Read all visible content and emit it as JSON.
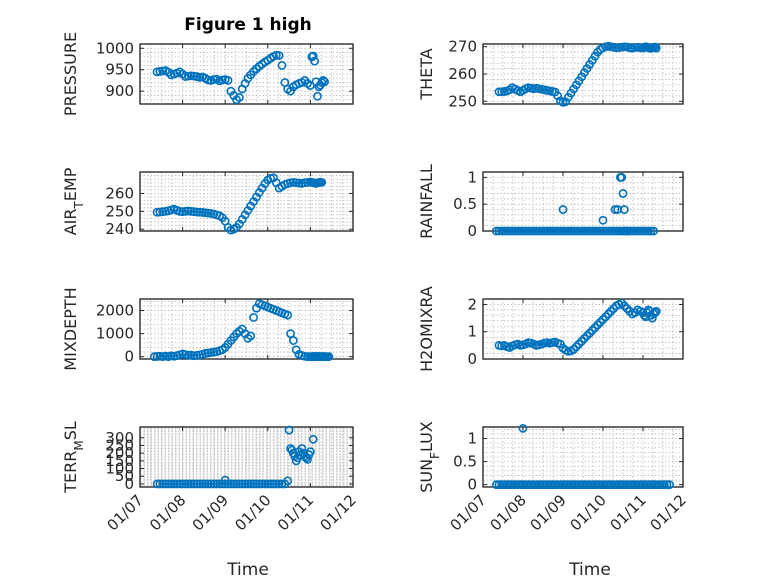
{
  "figure": {
    "title": "Figure 1 high",
    "xlabel": "Time"
  },
  "marker_color": "#0072BD",
  "chart_data": [
    {
      "type": "scatter",
      "ylabel": "PRESSURE",
      "ylim": [
        870,
        1010
      ],
      "yticks": [
        900,
        950,
        1000
      ],
      "yticklabels": [
        "900",
        "950",
        "1000"
      ],
      "xlim": [
        0,
        150
      ],
      "xticks": [
        0,
        30,
        60,
        90,
        120,
        150
      ],
      "xticklabels": [
        "",
        "",
        "",
        "",
        "",
        ""
      ],
      "x": [
        12,
        14,
        16,
        18,
        20,
        22,
        24,
        26,
        28,
        30,
        32,
        34,
        36,
        38,
        40,
        42,
        44,
        46,
        48,
        50,
        52,
        54,
        56,
        58,
        60,
        62,
        64,
        66,
        68,
        70,
        72,
        74,
        76,
        78,
        80,
        82,
        84,
        86,
        88,
        90,
        92,
        94,
        96,
        98,
        100,
        102,
        104,
        106,
        108,
        110,
        112,
        114,
        116,
        118,
        120,
        121,
        122,
        123,
        124,
        125,
        126,
        127,
        128,
        129,
        130
      ],
      "y": [
        945,
        946,
        947,
        948,
        944,
        938,
        940,
        942,
        945,
        940,
        934,
        935,
        936,
        935,
        934,
        932,
        933,
        930,
        926,
        925,
        927,
        928,
        924,
        926,
        927,
        925,
        900,
        890,
        880,
        885,
        905,
        918,
        930,
        938,
        946,
        952,
        958,
        963,
        968,
        972,
        977,
        981,
        984,
        983,
        960,
        920,
        905,
        900,
        910,
        915,
        918,
        920,
        925,
        918,
        913,
        980,
        982,
        970,
        922,
        888,
        910,
        914,
        920,
        925,
        922
      ]
    },
    {
      "type": "scatter",
      "ylabel": "THETA",
      "ylim": [
        249,
        271
      ],
      "yticks": [
        250,
        260,
        270
      ],
      "yticklabels": [
        "250",
        "260",
        "270"
      ],
      "xlim": [
        0,
        150
      ],
      "xticks": [
        0,
        30,
        60,
        90,
        120,
        150
      ],
      "xticklabels": [
        "",
        "",
        "",
        "",
        "",
        ""
      ],
      "x": [
        12,
        14,
        16,
        18,
        20,
        22,
        24,
        26,
        28,
        30,
        32,
        34,
        36,
        38,
        40,
        42,
        44,
        46,
        48,
        50,
        52,
        54,
        56,
        58,
        60,
        62,
        64,
        66,
        68,
        70,
        72,
        74,
        76,
        78,
        80,
        82,
        84,
        86,
        88,
        90,
        92,
        94,
        96,
        98,
        100,
        102,
        104,
        106,
        108,
        110,
        112,
        114,
        116,
        118,
        120,
        121,
        122,
        123,
        124,
        125,
        126,
        127,
        128,
        129,
        130
      ],
      "y": [
        253.5,
        253.5,
        253.6,
        253.8,
        254.2,
        255,
        254.5,
        254,
        253.5,
        254,
        254.6,
        255,
        254.8,
        254.6,
        254.8,
        254.6,
        254.4,
        254.2,
        254,
        253.8,
        253.6,
        253.4,
        252,
        250.2,
        249.6,
        249.8,
        251.5,
        253,
        254.5,
        256,
        257.5,
        259,
        260.5,
        262,
        263.5,
        265,
        266.5,
        268,
        269,
        269.6,
        270,
        270.2,
        270,
        269.8,
        269.6,
        269.7,
        269.8,
        270,
        269.9,
        269.6,
        269.5,
        269.7,
        269.8,
        269.6,
        269.5,
        269.8,
        270,
        269.9,
        269.6,
        269.5,
        269.4,
        269.7,
        269.8,
        269.9,
        269.5
      ]
    },
    {
      "type": "scatter",
      "ylabel": "AIR_TEMP",
      "ylabel_base": "AIR",
      "ylabel_sub": "T",
      "ylabel_tail": "EMP",
      "ylim": [
        239,
        272
      ],
      "yticks": [
        240,
        250,
        260
      ],
      "yticklabels": [
        "240",
        "250",
        "260"
      ],
      "xlim": [
        0,
        150
      ],
      "xticks": [
        0,
        30,
        60,
        90,
        120,
        150
      ],
      "xticklabels": [
        "",
        "",
        "",
        "",
        "",
        ""
      ],
      "x": [
        12,
        14,
        16,
        18,
        20,
        22,
        24,
        26,
        28,
        30,
        32,
        34,
        36,
        38,
        40,
        42,
        44,
        46,
        48,
        50,
        52,
        54,
        56,
        58,
        60,
        62,
        64,
        66,
        68,
        70,
        72,
        74,
        76,
        78,
        80,
        82,
        84,
        86,
        88,
        90,
        92,
        94,
        96,
        98,
        100,
        102,
        104,
        106,
        108,
        110,
        112,
        114,
        116,
        118,
        120,
        121,
        122,
        123,
        124,
        125,
        126,
        127,
        128
      ],
      "y": [
        249.5,
        249.6,
        249.8,
        250,
        250.3,
        250.8,
        251.2,
        250.6,
        250,
        249.8,
        250,
        250.2,
        250,
        249.8,
        249.6,
        249.5,
        249.4,
        249.2,
        249,
        248.8,
        248.5,
        248,
        247.5,
        246.5,
        244.5,
        241,
        239.5,
        240,
        241,
        243,
        245.5,
        248,
        250.5,
        253,
        255.5,
        258,
        260.5,
        263,
        265.5,
        267.5,
        268.5,
        268.8,
        266,
        263,
        264,
        265,
        265.5,
        266,
        266.2,
        266,
        265.8,
        265.6,
        266,
        266.2,
        266.4,
        266.2,
        266,
        265.8,
        265.6,
        265.9,
        266.1,
        266.3,
        266.2
      ]
    },
    {
      "type": "scatter",
      "ylabel": "RAINFALL",
      "ylim": [
        0,
        1.1
      ],
      "yticks": [
        0,
        0.5,
        1
      ],
      "yticklabels": [
        "0",
        "0.5",
        "1"
      ],
      "xlim": [
        0,
        150
      ],
      "xticks": [
        0,
        30,
        60,
        90,
        120,
        150
      ],
      "xticklabels": [
        "",
        "",
        "",
        "",
        "",
        ""
      ],
      "x": [
        10,
        12,
        14,
        16,
        18,
        20,
        22,
        24,
        26,
        28,
        30,
        32,
        34,
        36,
        38,
        40,
        42,
        44,
        46,
        48,
        50,
        52,
        54,
        56,
        58,
        60,
        62,
        64,
        66,
        68,
        70,
        72,
        74,
        76,
        78,
        80,
        82,
        84,
        86,
        88,
        90,
        92,
        94,
        96,
        98,
        100,
        102,
        104,
        106,
        108,
        110,
        112,
        114,
        116,
        118,
        120,
        122,
        124,
        126,
        128,
        60,
        90,
        99,
        101,
        103,
        104,
        105,
        106,
        107
      ],
      "y": [
        0,
        0,
        0,
        0,
        0,
        0,
        0,
        0,
        0,
        0,
        0,
        0,
        0,
        0,
        0,
        0,
        0,
        0,
        0,
        0,
        0,
        0,
        0,
        0,
        0,
        0,
        0,
        0,
        0,
        0,
        0,
        0,
        0,
        0,
        0,
        0,
        0,
        0,
        0,
        0,
        0,
        0,
        0,
        0,
        0,
        0,
        0,
        0,
        0,
        0,
        0,
        0,
        0,
        0,
        0,
        0,
        0,
        0,
        0,
        0,
        0.4,
        0.2,
        0.4,
        0.4,
        1.0,
        1.0,
        0.7,
        0.4,
        0
      ]
    },
    {
      "type": "scatter",
      "ylabel": "MIXDEPTH",
      "ylim": [
        -100,
        2500
      ],
      "yticks": [
        0,
        1000,
        2000
      ],
      "yticklabels": [
        "0",
        "1000",
        "2000"
      ],
      "xlim": [
        0,
        150
      ],
      "xticks": [
        0,
        30,
        60,
        90,
        120,
        150
      ],
      "xticklabels": [
        "",
        "",
        "",
        "",
        "",
        ""
      ],
      "x": [
        10,
        12,
        14,
        16,
        18,
        20,
        22,
        24,
        26,
        28,
        30,
        32,
        34,
        36,
        38,
        40,
        42,
        44,
        46,
        48,
        50,
        52,
        54,
        56,
        58,
        60,
        62,
        64,
        66,
        68,
        70,
        72,
        74,
        76,
        78,
        80,
        82,
        84,
        86,
        88,
        90,
        92,
        94,
        96,
        98,
        100,
        102,
        104,
        106,
        108,
        110,
        112,
        114,
        116,
        118,
        120,
        121,
        122,
        123,
        124,
        125,
        126,
        127,
        128,
        129,
        130,
        131,
        132,
        133
      ],
      "y": [
        0,
        10,
        20,
        0,
        30,
        0,
        40,
        20,
        50,
        80,
        120,
        90,
        60,
        70,
        40,
        60,
        80,
        100,
        140,
        160,
        180,
        200,
        220,
        260,
        300,
        400,
        550,
        700,
        850,
        1000,
        1100,
        1200,
        1000,
        800,
        900,
        1700,
        2100,
        2300,
        2250,
        2200,
        2150,
        2100,
        2050,
        2000,
        1950,
        1900,
        1850,
        1800,
        1000,
        700,
        300,
        100,
        50,
        20,
        0,
        0,
        0,
        10,
        0,
        20,
        0,
        10,
        0,
        0,
        10,
        0,
        0,
        0,
        0
      ]
    },
    {
      "type": "scatter",
      "ylabel": "H2OMIXRA",
      "ylim": [
        0,
        2.2
      ],
      "yticks": [
        0,
        1,
        2
      ],
      "yticklabels": [
        "0",
        "1",
        "2"
      ],
      "xlim": [
        0,
        150
      ],
      "xticks": [
        0,
        30,
        60,
        90,
        120,
        150
      ],
      "xticklabels": [
        "",
        "",
        "",
        "",
        "",
        ""
      ],
      "x": [
        12,
        14,
        16,
        18,
        20,
        22,
        24,
        26,
        28,
        30,
        32,
        34,
        36,
        38,
        40,
        42,
        44,
        46,
        48,
        50,
        52,
        54,
        56,
        58,
        60,
        62,
        64,
        66,
        68,
        70,
        72,
        74,
        76,
        78,
        80,
        82,
        84,
        86,
        88,
        90,
        92,
        94,
        96,
        98,
        100,
        102,
        104,
        106,
        108,
        110,
        112,
        114,
        116,
        118,
        120,
        121,
        122,
        123,
        124,
        125,
        126,
        127,
        128,
        129,
        130
      ],
      "y": [
        0.5,
        0.48,
        0.5,
        0.45,
        0.42,
        0.48,
        0.52,
        0.55,
        0.5,
        0.52,
        0.55,
        0.6,
        0.58,
        0.55,
        0.5,
        0.52,
        0.55,
        0.58,
        0.6,
        0.58,
        0.6,
        0.62,
        0.58,
        0.55,
        0.4,
        0.32,
        0.28,
        0.3,
        0.35,
        0.45,
        0.55,
        0.65,
        0.75,
        0.85,
        0.95,
        1.05,
        1.15,
        1.25,
        1.35,
        1.45,
        1.55,
        1.65,
        1.75,
        1.85,
        1.95,
        2.0,
        2.05,
        1.95,
        1.85,
        1.75,
        1.65,
        1.7,
        1.8,
        1.75,
        1.7,
        1.6,
        1.55,
        1.7,
        1.8,
        1.75,
        1.6,
        1.5,
        1.65,
        1.7,
        1.75
      ]
    },
    {
      "type": "scatter",
      "ylabel": "TERR_MSL",
      "ylabel_base": "TERR",
      "ylabel_sub": "M",
      "ylabel_tail": "SL",
      "ylim": [
        -20,
        370
      ],
      "yticks": [
        0,
        50,
        100,
        150,
        200,
        250,
        300
      ],
      "yticklabels": [
        "0",
        "50",
        "100",
        "150",
        "200",
        "250",
        "300"
      ],
      "xlim": [
        0,
        150
      ],
      "xticks": [
        0,
        30,
        60,
        90,
        120,
        150
      ],
      "xticklabels": [
        "01/07",
        "01/08",
        "01/09",
        "01/10",
        "01/11",
        "01/12"
      ],
      "x": [
        12,
        14,
        16,
        18,
        20,
        22,
        24,
        26,
        28,
        30,
        32,
        34,
        36,
        38,
        40,
        42,
        44,
        46,
        48,
        50,
        52,
        54,
        56,
        58,
        60,
        62,
        64,
        66,
        68,
        70,
        72,
        74,
        76,
        78,
        80,
        82,
        84,
        86,
        88,
        90,
        92,
        94,
        96,
        98,
        100,
        102,
        60,
        104,
        105,
        106,
        107,
        108,
        109,
        110,
        111,
        112,
        113,
        114,
        115,
        116,
        117,
        118,
        119,
        120,
        122
      ],
      "y": [
        0,
        0,
        0,
        0,
        0,
        0,
        0,
        0,
        0,
        0,
        0,
        0,
        0,
        0,
        0,
        0,
        0,
        0,
        0,
        0,
        0,
        0,
        0,
        0,
        0,
        0,
        0,
        0,
        0,
        0,
        0,
        0,
        0,
        0,
        0,
        0,
        0,
        0,
        0,
        0,
        0,
        0,
        0,
        0,
        0,
        0,
        25,
        20,
        350,
        230,
        220,
        200,
        180,
        150,
        170,
        210,
        190,
        230,
        200,
        180,
        170,
        160,
        190,
        210,
        290
      ]
    },
    {
      "type": "scatter",
      "ylabel": "SUN_FLUX",
      "ylabel_base": "SUN",
      "ylabel_sub": "F",
      "ylabel_tail": "LUX",
      "ylim": [
        -0.05,
        1.25
      ],
      "yticks": [
        0,
        0.5,
        1
      ],
      "yticklabels": [
        "0",
        "0.5",
        "1"
      ],
      "xlim": [
        0,
        150
      ],
      "xticks": [
        0,
        30,
        60,
        90,
        120,
        150
      ],
      "xticklabels": [
        "01/07",
        "01/08",
        "01/09",
        "01/10",
        "01/11",
        "01/12"
      ],
      "x": [
        10,
        12,
        14,
        16,
        18,
        20,
        22,
        24,
        26,
        28,
        30,
        32,
        34,
        36,
        38,
        40,
        42,
        44,
        46,
        48,
        50,
        52,
        54,
        56,
        58,
        60,
        62,
        64,
        66,
        68,
        70,
        72,
        74,
        76,
        78,
        80,
        82,
        84,
        86,
        88,
        90,
        92,
        94,
        96,
        98,
        100,
        102,
        104,
        106,
        108,
        110,
        112,
        114,
        116,
        118,
        120,
        122,
        124,
        126,
        128,
        130,
        132,
        134,
        136,
        138,
        140,
        30
      ],
      "y": [
        0,
        0,
        0,
        0,
        0,
        0,
        0,
        0,
        0,
        0,
        0,
        0,
        0,
        0,
        0,
        0,
        0,
        0,
        0,
        0,
        0,
        0,
        0,
        0,
        0,
        0,
        0,
        0,
        0,
        0,
        0,
        0,
        0,
        0,
        0,
        0,
        0,
        0,
        0,
        0,
        0,
        0,
        0,
        0,
        0,
        0,
        0,
        0,
        0,
        0,
        0,
        0,
        0,
        0,
        0,
        0,
        0,
        0,
        0,
        0,
        0,
        0,
        0,
        0,
        0,
        0,
        1.22
      ]
    }
  ]
}
